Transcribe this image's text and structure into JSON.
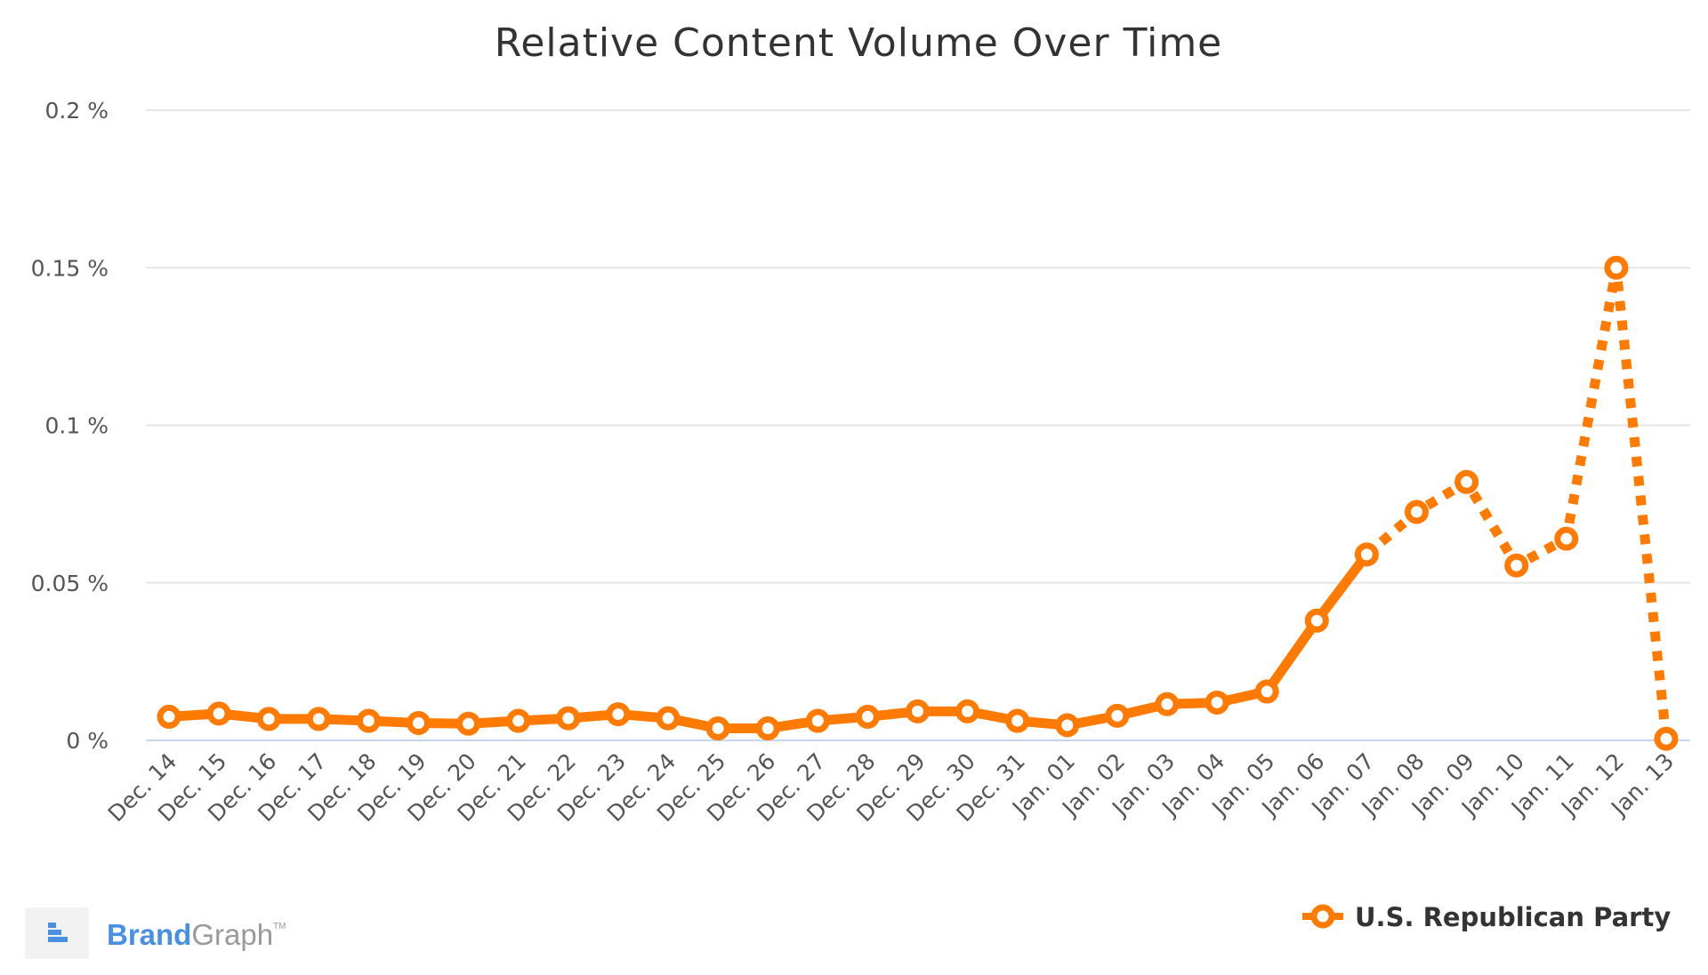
{
  "colors": {
    "series": "#FF7A00",
    "grid": "#E6E6E6",
    "baseline": "#C8D6F0",
    "brand_blue": "#4A90E2",
    "brand_gray": "#9A9A9A"
  },
  "chart_data": {
    "type": "line",
    "title": "Relative Content Volume Over Time",
    "xlabel": "",
    "ylabel": "",
    "ylim": [
      0,
      0.2
    ],
    "y_ticks": [
      {
        "value": 0,
        "label": "0 %"
      },
      {
        "value": 0.05,
        "label": "0.05 %"
      },
      {
        "value": 0.1,
        "label": "0.1 %"
      },
      {
        "value": 0.15,
        "label": "0.15 %"
      },
      {
        "value": 0.2,
        "label": "0.2 %"
      }
    ],
    "grid": true,
    "legend_position": "bottom-right",
    "categories": [
      "Dec. 14",
      "Dec. 15",
      "Dec. 16",
      "Dec. 17",
      "Dec. 18",
      "Dec. 19",
      "Dec. 20",
      "Dec. 21",
      "Dec. 22",
      "Dec. 23",
      "Dec. 24",
      "Dec. 25",
      "Dec. 26",
      "Dec. 27",
      "Dec. 28",
      "Dec. 29",
      "Dec. 30",
      "Dec. 31",
      "Jan. 01",
      "Jan. 02",
      "Jan. 03",
      "Jan. 04",
      "Jan. 05",
      "Jan. 06",
      "Jan. 07",
      "Jan. 08",
      "Jan. 09",
      "Jan. 10",
      "Jan. 11",
      "Jan. 12",
      "Jan. 13"
    ],
    "series": [
      {
        "name": "U.S. Republican Party",
        "values": [
          0.0075,
          0.0085,
          0.0068,
          0.0068,
          0.0062,
          0.0055,
          0.0053,
          0.0062,
          0.007,
          0.0083,
          0.007,
          0.0038,
          0.0038,
          0.0062,
          0.0075,
          0.0092,
          0.0092,
          0.0062,
          0.0048,
          0.0078,
          0.0115,
          0.012,
          0.0155,
          0.038,
          0.059,
          0.0725,
          0.082,
          0.0555,
          0.064,
          0.15,
          0.0005
        ],
        "dashed_from_index": 24
      }
    ]
  },
  "legend": {
    "label": "U.S. Republican Party"
  },
  "brand": {
    "part1": "Brand",
    "part2": "Graph",
    "tm": "TM"
  }
}
